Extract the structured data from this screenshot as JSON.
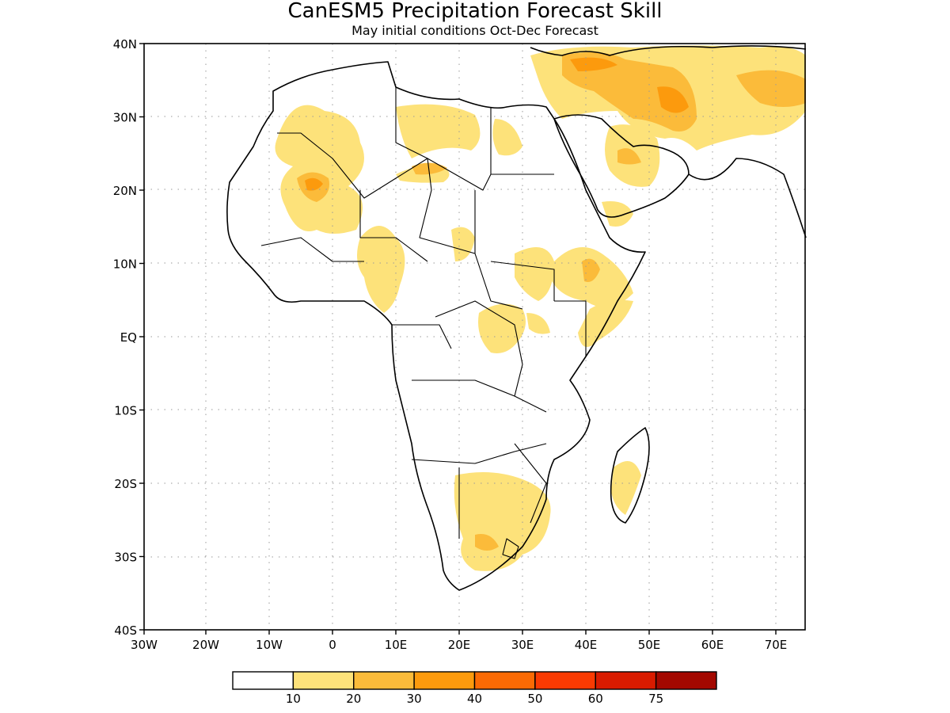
{
  "title": "CanESM5 Precipitation Forecast Skill",
  "subtitle": "May initial conditions  Oct-Dec Forecast",
  "lon_ticks": [
    "30W",
    "20W",
    "10W",
    "0",
    "10E",
    "20E",
    "30E",
    "40E",
    "50E",
    "60E",
    "70E"
  ],
  "lat_ticks": [
    "40N",
    "30N",
    "20N",
    "10N",
    "EQ",
    "10S",
    "20S",
    "30S",
    "40S"
  ],
  "colorbar": {
    "colors": [
      "#ffffff",
      "#fde27a",
      "#fbbb3a",
      "#fc9a0d",
      "#fb6a04",
      "#fa3a02",
      "#d91b00",
      "#a30800"
    ],
    "labels": [
      "10",
      "20",
      "30",
      "40",
      "50",
      "60",
      "75"
    ]
  },
  "map_extent": {
    "lon_min": -30,
    "lon_max": 75,
    "lat_min": -40,
    "lat_max": 40
  }
}
